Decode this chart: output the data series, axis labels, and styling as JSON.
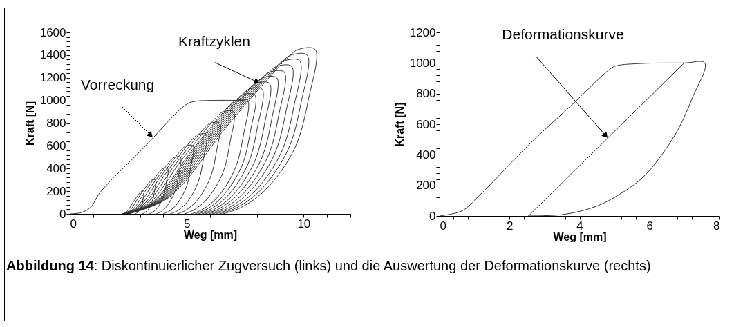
{
  "chart_data": [
    {
      "type": "line",
      "xlabel": "Weg [mm]",
      "ylabel": "Kraft [N]",
      "xlim": [
        0,
        12
      ],
      "ylim": [
        0,
        1600
      ],
      "marker": "none",
      "line_style": "solid",
      "grid": false,
      "legend": false,
      "xticks": [
        0,
        {
          "value": 1,
          "label": null
        },
        {
          "value": 2,
          "label": null
        },
        {
          "value": 3,
          "label": null
        },
        {
          "value": 4,
          "label": null
        },
        5,
        {
          "value": 6,
          "label": null
        },
        {
          "value": 7,
          "label": null
        },
        {
          "value": 8,
          "label": null
        },
        {
          "value": 9,
          "label": null
        },
        10,
        {
          "value": 11,
          "label": null
        },
        {
          "value": 12,
          "label": null
        }
      ],
      "yticks": [
        0,
        {
          "value": 40,
          "label": null
        },
        {
          "value": 80,
          "label": null
        },
        {
          "value": 120,
          "label": null
        },
        {
          "value": 160,
          "label": null
        },
        200,
        {
          "value": 240,
          "label": null
        },
        {
          "value": 280,
          "label": null
        },
        {
          "value": 320,
          "label": null
        },
        {
          "value": 360,
          "label": null
        },
        400,
        {
          "value": 440,
          "label": null
        },
        {
          "value": 480,
          "label": null
        },
        {
          "value": 520,
          "label": null
        },
        {
          "value": 560,
          "label": null
        },
        600,
        {
          "value": 640,
          "label": null
        },
        {
          "value": 680,
          "label": null
        },
        {
          "value": 720,
          "label": null
        },
        {
          "value": 760,
          "label": null
        },
        800,
        {
          "value": 840,
          "label": null
        },
        {
          "value": 880,
          "label": null
        },
        {
          "value": 920,
          "label": null
        },
        {
          "value": 960,
          "label": null
        },
        1000,
        {
          "value": 1040,
          "label": null
        },
        {
          "value": 1080,
          "label": null
        },
        {
          "value": 1120,
          "label": null
        },
        {
          "value": 1160,
          "label": null
        },
        1200,
        {
          "value": 1240,
          "label": null
        },
        {
          "value": 1280,
          "label": null
        },
        {
          "value": 1320,
          "label": null
        },
        {
          "value": 1360,
          "label": null
        },
        1400,
        {
          "value": 1440,
          "label": null
        },
        {
          "value": 1480,
          "label": null
        },
        {
          "value": 1520,
          "label": null
        },
        {
          "value": 1560,
          "label": null
        },
        1600
      ],
      "annotations": [
        {
          "text": "Vorreckung",
          "x": 3.46,
          "y": 693
        },
        {
          "text": "Kraftzyklen",
          "x": 8.01,
          "y": 1164
        }
      ],
      "series": [
        {
          "color": "#333333",
          "x": [
            0,
            0.5,
            0.9,
            1.3,
            3.1,
            4.95,
            5.3,
            6.0,
            7.5
          ],
          "values": [
            0,
            12,
            60,
            190,
            570,
            960,
            990,
            1000,
            1000
          ]
        },
        {
          "color": "#333333",
          "x": [
            2.24,
            2.44,
            2.73,
            3.03,
            3.07,
            3.17,
            3.14,
            3.09,
            2.97,
            2.87,
            2.8
          ],
          "values": [
            0,
            20,
            110,
            194,
            200,
            200,
            140,
            80,
            30,
            8,
            0
          ]
        },
        {
          "color": "#333333",
          "x": [
            2.26,
            2.56,
            3.0,
            3.46,
            3.52,
            3.67,
            3.63,
            3.54,
            3.37,
            3.21,
            3.1
          ],
          "values": [
            0,
            30,
            165,
            291,
            300,
            300,
            210,
            120,
            45,
            12,
            0
          ]
        },
        {
          "color": "#333333",
          "x": [
            2.28,
            2.69,
            3.29,
            3.91,
            3.99,
            4.19,
            4.13,
            4.02,
            3.77,
            3.56,
            3.4
          ],
          "values": [
            0,
            40,
            220,
            388,
            400,
            400,
            280,
            160,
            60,
            16,
            0
          ]
        },
        {
          "color": "#333333",
          "x": [
            2.3,
            2.82,
            3.59,
            4.38,
            4.49,
            4.73,
            4.66,
            4.5,
            4.18,
            3.91,
            3.7
          ],
          "values": [
            0,
            50,
            275,
            485,
            500,
            500,
            350,
            200,
            75,
            20,
            0
          ]
        },
        {
          "color": "#333333",
          "x": [
            2.32,
            2.95,
            3.89,
            4.85,
            4.98,
            5.27,
            5.18,
            4.99,
            4.6,
            4.25,
            4.0
          ],
          "values": [
            0,
            60,
            330,
            582,
            600,
            600,
            420,
            240,
            90,
            24,
            0
          ]
        },
        {
          "color": "#333333",
          "x": [
            2.34,
            3.09,
            4.2,
            5.34,
            5.49,
            5.83,
            5.72,
            5.49,
            5.02,
            4.61,
            4.3
          ],
          "values": [
            0,
            70,
            385,
            679,
            700,
            700,
            490,
            280,
            105,
            28,
            0
          ]
        },
        {
          "color": "#333333",
          "x": [
            2.36,
            3.23,
            4.52,
            5.85,
            6.02,
            6.41,
            6.28,
            6.01,
            5.45,
            4.96,
            4.6
          ],
          "values": [
            0,
            80,
            440,
            776,
            800,
            800,
            560,
            320,
            120,
            32,
            0
          ]
        },
        {
          "color": "#333333",
          "x": [
            2.38,
            3.38,
            4.85,
            6.37,
            6.56,
            7.0,
            6.85,
            6.54,
            5.89,
            5.32,
            4.9
          ],
          "values": [
            0,
            90,
            495,
            873,
            900,
            900,
            630,
            360,
            135,
            36,
            0
          ]
        },
        {
          "color": "#333333",
          "x": [
            2.4,
            3.53,
            5.19,
            6.9,
            7.11,
            7.6,
            7.43,
            7.07,
            6.33,
            5.68,
            5.2
          ],
          "values": [
            0,
            100,
            550,
            970,
            1000,
            1000,
            700,
            400,
            150,
            40,
            0
          ]
        },
        {
          "color": "#333333",
          "x": [
            2.41,
            3.6,
            5.36,
            7.17,
            7.39,
            7.91,
            7.73,
            7.35,
            6.55,
            5.86,
            5.35
          ],
          "values": [
            0,
            105,
            578,
            1019,
            1050,
            1050,
            735,
            420,
            158,
            42,
            0
          ]
        },
        {
          "color": "#333333",
          "x": [
            2.42,
            3.68,
            5.54,
            7.45,
            7.68,
            8.22,
            8.03,
            7.62,
            6.78,
            6.04,
            5.5
          ],
          "values": [
            0,
            110,
            605,
            1067,
            1100,
            1100,
            770,
            440,
            165,
            44,
            0
          ]
        },
        {
          "color": "#333333",
          "x": [
            2.43,
            3.76,
            5.72,
            7.73,
            7.97,
            8.54,
            8.34,
            7.9,
            7.01,
            6.23,
            5.65
          ],
          "values": [
            0,
            115,
            633,
            1116,
            1150,
            1150,
            805,
            460,
            173,
            46,
            0
          ]
        },
        {
          "color": "#333333",
          "x": [
            2.44,
            3.83,
            5.89,
            8.01,
            8.26,
            8.85,
            8.64,
            8.18,
            7.23,
            6.41,
            5.8
          ],
          "values": [
            0,
            120,
            660,
            1164,
            1200,
            1200,
            840,
            480,
            180,
            48,
            0
          ]
        },
        {
          "color": "#333333",
          "x": [
            2.45,
            3.91,
            6.07,
            8.29,
            8.55,
            9.17,
            8.94,
            8.46,
            7.46,
            6.59,
            5.95
          ],
          "values": [
            0,
            125,
            688,
            1213,
            1250,
            1250,
            875,
            500,
            188,
            50,
            0
          ]
        },
        {
          "color": "#333333",
          "x": [
            2.46,
            3.99,
            6.25,
            8.58,
            8.85,
            9.49,
            9.25,
            8.74,
            7.69,
            6.78,
            6.1
          ],
          "values": [
            0,
            130,
            715,
            1261,
            1300,
            1300,
            910,
            520,
            195,
            52,
            0
          ]
        },
        {
          "color": "#333333",
          "x": [
            2.47,
            4.07,
            6.44,
            8.88,
            9.17,
            9.83,
            9.58,
            9.04,
            7.93,
            6.97,
            6.25
          ],
          "values": [
            0,
            135,
            743,
            1310,
            1350,
            1350,
            945,
            540,
            203,
            54,
            0
          ]
        },
        {
          "color": "#333333",
          "x": [
            2.48,
            4.15,
            6.63,
            9.17,
            9.46,
            10.15,
            9.89,
            9.32,
            8.16,
            7.15,
            6.4
          ],
          "values": [
            0,
            140,
            770,
            1358,
            1400,
            1400,
            980,
            560,
            210,
            56,
            0
          ]
        },
        {
          "color": "#333333",
          "x": [
            2.49,
            4.24,
            6.82,
            9.47,
            9.78,
            10.49,
            10.21,
            9.62,
            8.4,
            7.34,
            6.55
          ],
          "values": [
            0,
            145,
            798,
            1407,
            1450,
            1450,
            1015,
            580,
            218,
            58,
            0
          ]
        }
      ]
    },
    {
      "type": "line",
      "xlabel": "Weg [mm]",
      "ylabel": "Kraft [N]",
      "xlim": [
        0,
        8
      ],
      "ylim": [
        0,
        1200
      ],
      "marker": "none",
      "line_style": "solid",
      "grid": false,
      "legend": false,
      "xticks": [
        0,
        {
          "value": 0.4,
          "label": null
        },
        {
          "value": 0.8,
          "label": null
        },
        {
          "value": 1.2,
          "label": null
        },
        {
          "value": 1.6,
          "label": null
        },
        2,
        {
          "value": 2.4,
          "label": null
        },
        {
          "value": 2.8,
          "label": null
        },
        {
          "value": 3.2,
          "label": null
        },
        {
          "value": 3.6,
          "label": null
        },
        4,
        {
          "value": 4.4,
          "label": null
        },
        {
          "value": 4.8,
          "label": null
        },
        {
          "value": 5.2,
          "label": null
        },
        {
          "value": 5.6,
          "label": null
        },
        6,
        {
          "value": 6.4,
          "label": null
        },
        {
          "value": 6.8,
          "label": null
        },
        {
          "value": 7.2,
          "label": null
        },
        {
          "value": 7.6,
          "label": null
        },
        8
      ],
      "yticks": [
        0,
        {
          "value": 40,
          "label": null
        },
        {
          "value": 80,
          "label": null
        },
        {
          "value": 120,
          "label": null
        },
        {
          "value": 160,
          "label": null
        },
        200,
        {
          "value": 240,
          "label": null
        },
        {
          "value": 280,
          "label": null
        },
        {
          "value": 320,
          "label": null
        },
        {
          "value": 360,
          "label": null
        },
        400,
        {
          "value": 440,
          "label": null
        },
        {
          "value": 480,
          "label": null
        },
        {
          "value": 520,
          "label": null
        },
        {
          "value": 560,
          "label": null
        },
        600,
        {
          "value": 640,
          "label": null
        },
        {
          "value": 680,
          "label": null
        },
        {
          "value": 720,
          "label": null
        },
        {
          "value": 760,
          "label": null
        },
        800,
        {
          "value": 840,
          "label": null
        },
        {
          "value": 880,
          "label": null
        },
        {
          "value": 920,
          "label": null
        },
        {
          "value": 960,
          "label": null
        },
        1000,
        {
          "value": 1040,
          "label": null
        },
        {
          "value": 1080,
          "label": null
        },
        {
          "value": 1120,
          "label": null
        },
        {
          "value": 1160,
          "label": null
        },
        1200
      ],
      "annotations": [
        {
          "text": "Deformationskurve",
          "x": 4.75,
          "y": 525
        },
        "Abbildung 14: Diskontinuierlicher Zugversuch (links) und die Auswertung der Deformationskurve (rechts)"
      ],
      "series": [
        {
          "color": "#333333",
          "x": [
            0,
            0.65,
            1.1,
            1.63,
            2.54,
            3.84,
            4.88,
            5.06,
            5.79,
            6.99,
            7.58,
            7.22,
            6.83,
            6.31,
            5.79,
            5.14,
            4.49,
            3.58,
            2.54
          ],
          "values": [
            0,
            34,
            126,
            248,
            463,
            739,
            962,
            982,
            997,
            1000,
            1000,
            770,
            571,
            387,
            248,
            141,
            64,
            11,
            0
          ]
        },
        {
          "color": "#333333",
          "x": [
            2.54,
            6.99
          ],
          "values": [
            0,
            1000
          ]
        }
      ]
    }
  ]
}
